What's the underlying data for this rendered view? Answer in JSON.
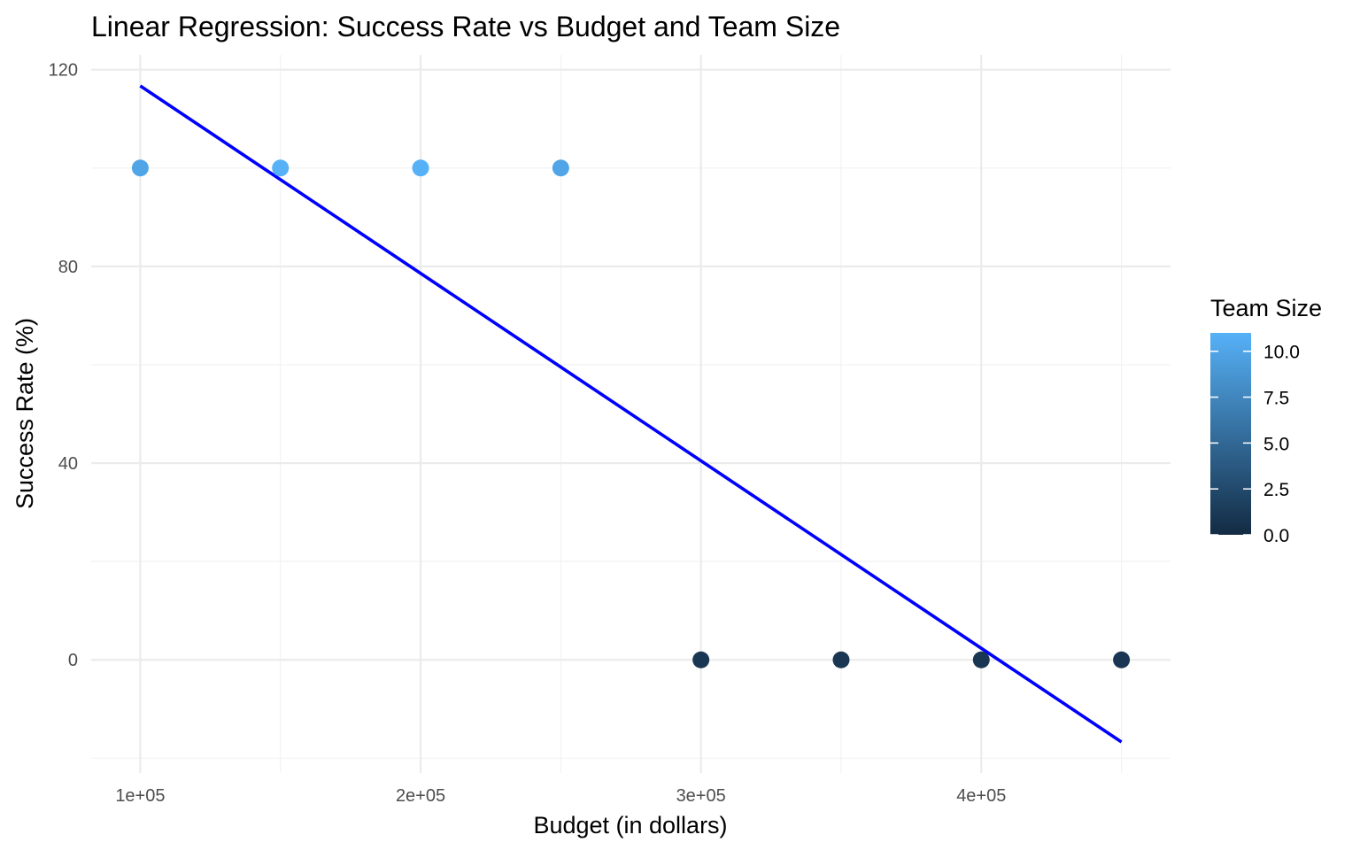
{
  "chart_data": {
    "type": "scatter",
    "title": "Linear Regression: Success Rate vs Budget and Team Size",
    "xlabel": "Budget (in dollars)",
    "ylabel": "Success Rate (%)",
    "xlim": [
      82500,
      467500
    ],
    "ylim": [
      -23,
      123
    ],
    "x_ticks": [
      100000,
      200000,
      300000,
      400000
    ],
    "x_tick_labels": [
      "1e+05",
      "2e+05",
      "3e+05",
      "4e+05"
    ],
    "x_minor": [
      150000,
      250000,
      350000,
      450000
    ],
    "y_ticks": [
      0,
      40,
      80,
      120
    ],
    "y_tick_labels": [
      "0",
      "40",
      "80",
      "120"
    ],
    "y_minor": [
      -20,
      20,
      60,
      100
    ],
    "grid": true,
    "legend": {
      "title": "Team Size",
      "position": "right",
      "range": [
        0,
        11
      ],
      "ticks": [
        0,
        2.5,
        5,
        7.5,
        10
      ],
      "tick_labels": [
        "0.0",
        "2.5",
        "5.0",
        "7.5",
        "10.0"
      ],
      "color_low": "#132b43",
      "color_high": "#56b1f7"
    },
    "points": [
      {
        "x": 100000,
        "y": 100,
        "team_size": 10
      },
      {
        "x": 150000,
        "y": 100,
        "team_size": 11
      },
      {
        "x": 200000,
        "y": 100,
        "team_size": 11
      },
      {
        "x": 250000,
        "y": 100,
        "team_size": 10
      },
      {
        "x": 300000,
        "y": 0,
        "team_size": 1
      },
      {
        "x": 350000,
        "y": 0,
        "team_size": 1
      },
      {
        "x": 400000,
        "y": 0,
        "team_size": 1
      },
      {
        "x": 450000,
        "y": 0,
        "team_size": 1
      }
    ],
    "regression_line": {
      "color": "#0000ff",
      "x": [
        100000,
        450000
      ],
      "y": [
        116.7,
        -16.7
      ]
    }
  }
}
